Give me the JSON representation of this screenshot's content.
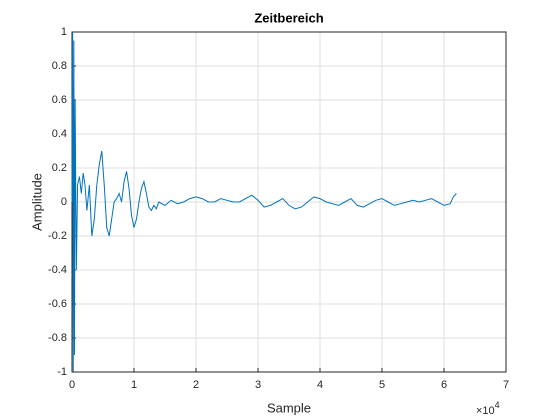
{
  "chart_data": {
    "type": "line",
    "title": "Zeitbereich",
    "x_label": "Sample",
    "y_label": "Amplitude",
    "x_exponent": {
      "base": "×10",
      "power": "4"
    },
    "x": [
      0,
      100,
      200,
      300,
      400,
      500,
      700,
      900,
      1200,
      1500,
      1800,
      2100,
      2400,
      2800,
      3200,
      3600,
      4000,
      4400,
      4800,
      5200,
      5600,
      6000,
      6400,
      6800,
      7200,
      7600,
      8000,
      8400,
      8800,
      9200,
      9600,
      10000,
      10400,
      10800,
      11200,
      11600,
      12000,
      12400,
      12800,
      13200,
      13600,
      14000,
      15000,
      16000,
      17000,
      18000,
      19000,
      20000,
      21000,
      22000,
      23000,
      24000,
      25000,
      26000,
      27000,
      28000,
      29000,
      30000,
      31000,
      32000,
      33000,
      34000,
      35000,
      36000,
      37000,
      38000,
      39000,
      40000,
      41000,
      42000,
      43000,
      44000,
      45000,
      46000,
      47000,
      48000,
      49000,
      50000,
      51000,
      52000,
      53000,
      54000,
      55000,
      56000,
      57000,
      58000,
      59000,
      60000,
      61000,
      61500,
      62000
    ],
    "series": [
      {
        "color": "#0072bd",
        "values": [
          0,
          1,
          -1,
          0.95,
          -0.9,
          0.6,
          -0.4,
          0.1,
          0.15,
          0.05,
          0.17,
          0.1,
          -0.05,
          0.1,
          -0.2,
          -0.1,
          0.1,
          0.22,
          0.3,
          0.1,
          -0.15,
          -0.2,
          -0.1,
          0.0,
          0.02,
          0.05,
          0.0,
          0.12,
          0.18,
          0.08,
          -0.08,
          -0.15,
          -0.1,
          0.0,
          0.08,
          0.12,
          0.05,
          -0.03,
          -0.05,
          -0.02,
          -0.04,
          0.0,
          -0.02,
          0.01,
          -0.01,
          0.0,
          0.02,
          0.03,
          0.02,
          0.0,
          0.0,
          0.02,
          0.01,
          0.0,
          0.0,
          0.02,
          0.04,
          0.01,
          -0.03,
          -0.02,
          0.0,
          0.02,
          -0.02,
          -0.04,
          -0.03,
          0.0,
          0.03,
          0.02,
          0.0,
          -0.01,
          -0.02,
          0.0,
          0.02,
          -0.02,
          -0.03,
          -0.01,
          0.01,
          0.02,
          0.0,
          -0.02,
          -0.01,
          0.0,
          0.01,
          0.0,
          0.01,
          0.02,
          0.0,
          -0.02,
          -0.01,
          0.03,
          0.05
        ]
      }
    ],
    "xlim": [
      0,
      70000
    ],
    "xticks": [
      0,
      {
        "value": 10000,
        "label": "1"
      },
      {
        "value": 20000,
        "label": "2"
      },
      {
        "value": 30000,
        "label": "3"
      },
      {
        "value": 40000,
        "label": "4"
      },
      {
        "value": 50000,
        "label": "5"
      },
      {
        "value": 60000,
        "label": "6"
      },
      {
        "value": 70000,
        "label": "7"
      }
    ],
    "ylim": [
      -1,
      1
    ],
    "yticks": [
      -1,
      -0.8,
      -0.6,
      -0.4,
      -0.2,
      0,
      0.2,
      0.4,
      0.6,
      0.8,
      1
    ],
    "grid": true
  }
}
